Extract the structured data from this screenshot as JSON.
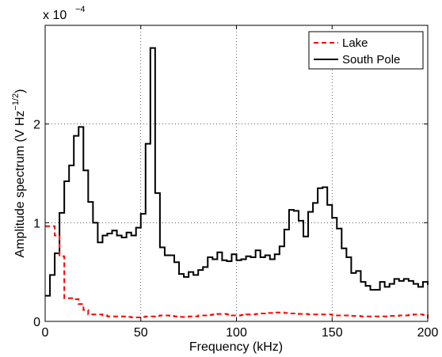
{
  "chart_data": {
    "type": "line",
    "title": "",
    "xlabel": "Frequency (kHz)",
    "ylabel_main": "Amplitude spectrum (V Hz",
    "ylabel_sup": "−1/2",
    "ylabel_close": ")",
    "xlim": [
      0,
      200
    ],
    "ylim": [
      0,
      0.0003
    ],
    "x_ticks": [
      0,
      50,
      100,
      150,
      200
    ],
    "x_tick_labels": [
      "0",
      "50",
      "100",
      "150",
      "200"
    ],
    "y_ticks": [
      0,
      0.0001,
      0.0002
    ],
    "y_tick_labels": [
      "0",
      "1",
      "2"
    ],
    "y_multiplier_base": "x 10",
    "y_multiplier_exp": "−4",
    "grid": true,
    "legend_position": "top-right",
    "series": [
      {
        "name": "Lake",
        "color": "#ff0000",
        "dash": "dashed",
        "step_width": 2.5,
        "x_start": 0,
        "values": [
          9.65e-05,
          9.65e-05,
          8.7e-05,
          6.6e-05,
          2.35e-05,
          2.35e-05,
          2.25e-05,
          1.75e-05,
          1.15e-05,
          7e-06,
          7e-06,
          7e-06,
          6e-06,
          5e-06,
          5e-06,
          5e-06,
          5e-06,
          4.5e-06,
          4e-06,
          4e-06,
          4.5e-06,
          5e-06,
          5e-06,
          5.5e-06,
          6e-06,
          6e-06,
          5.5e-06,
          5e-06,
          4.5e-06,
          4.5e-06,
          5e-06,
          5e-06,
          6e-06,
          6e-06,
          6.5e-06,
          7e-06,
          7.5e-06,
          7.5e-06,
          7e-06,
          6e-06,
          6e-06,
          6.5e-06,
          7e-06,
          7e-06,
          7.5e-06,
          8e-06,
          8.5e-06,
          8.5e-06,
          9e-06,
          9e-06,
          8.5e-06,
          8e-06,
          8e-06,
          7.5e-06,
          7.5e-06,
          7e-06,
          7e-06,
          7e-06,
          7e-06,
          7e-06,
          6e-06,
          6e-06,
          6e-06,
          6e-06,
          5.5e-06,
          5.5e-06,
          5e-06,
          5e-06,
          5e-06,
          5e-06,
          5e-06,
          5e-06,
          5.5e-06,
          5.5e-06,
          6e-06,
          6e-06,
          6.5e-06,
          7e-06,
          7e-06,
          6.5e-06,
          6e-06,
          5e-06,
          4.5e-06,
          4.5e-06,
          4.5e-06,
          4.5e-06,
          4e-06,
          4e-06,
          4e-06,
          4e-06,
          3.5e-06,
          3.5e-06,
          3e-06,
          3e-06,
          3e-06,
          3e-06,
          3e-06,
          3e-06,
          3e-06,
          3e-06
        ]
      },
      {
        "name": "South Pole",
        "color": "#000000",
        "dash": "solid",
        "step_width": 2.5,
        "x_start": 0,
        "values": [
          2.6e-05,
          4.7e-05,
          6.9e-05,
          0.00011,
          0.000142,
          0.000158,
          0.000188,
          0.000197,
          0.000153,
          0.000121,
          0.0001,
          8e-05,
          8.7e-05,
          8.9e-05,
          9.2e-05,
          8.7e-05,
          8.5e-05,
          9e-05,
          8.7e-05,
          9.5e-05,
          0.000109,
          0.00018,
          0.000277,
          0.00013,
          7.5e-05,
          6.7e-05,
          6.7e-05,
          6e-05,
          4.8e-05,
          4.5e-05,
          5e-05,
          4.7e-05,
          5.2e-05,
          5.5e-05,
          6.5e-05,
          6.3e-05,
          7e-05,
          6.2e-05,
          6.1e-05,
          6.8e-05,
          6.2e-05,
          6.3e-05,
          6.6e-05,
          6.5e-05,
          7.2e-05,
          6.5e-05,
          6.7e-05,
          6.3e-05,
          6.8e-05,
          7.6e-05,
          9.3e-05,
          0.000113,
          0.000112,
          0.000102,
          8.6e-05,
          0.000111,
          0.00012,
          0.000135,
          0.000136,
          0.000118,
          0.000105,
          9.4e-05,
          7.4e-05,
          6.5e-05,
          4.9e-05,
          5.1e-05,
          4e-05,
          3.6e-05,
          3.2e-05,
          3.2e-05,
          4e-05,
          3.5e-05,
          3.8e-05,
          4.3e-05,
          4.1e-05,
          4.3e-05,
          4.1e-05,
          3.8e-05,
          3.5e-05,
          4e-05,
          3.7e-05,
          4e-05
        ]
      }
    ]
  }
}
